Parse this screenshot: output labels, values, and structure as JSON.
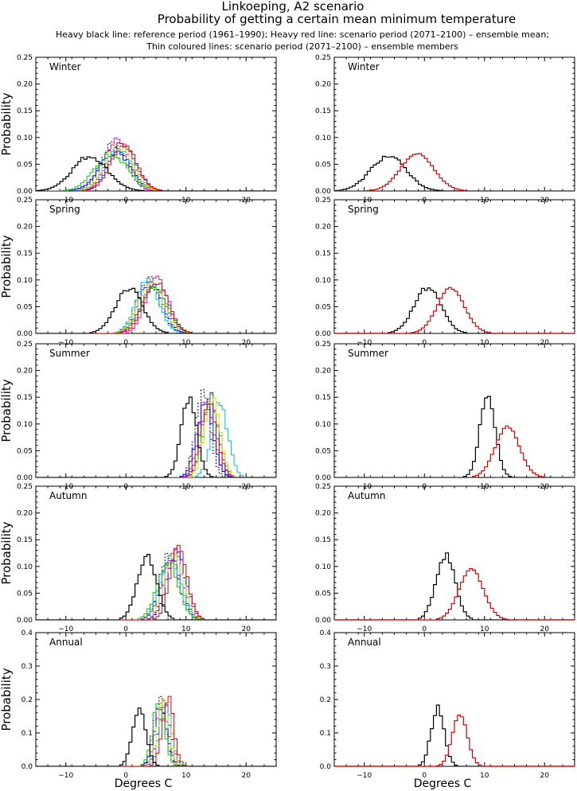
{
  "header": {
    "title": "Linkoeping, A2 scenario",
    "subtitle": "Probability of getting a certain mean minimum temperature",
    "legend_line1": "Heavy black line: reference period (1961–1990); Heavy red line: scenario period (2071–2100) – ensemble mean;",
    "legend_line2": "Thin coloured lines: scenario period (2071–2100) – ensemble members"
  },
  "axes": {
    "ylabel": "Probability",
    "xlabel": "Degrees C"
  },
  "colors": {
    "reference": "#000000",
    "scenario_mean": "#dd0000",
    "members": [
      "#000000",
      "#ff00ff",
      "#7700cc",
      "#0000ff",
      "#00bbdd",
      "#00cc00",
      "#dddd00",
      "#dd0000"
    ]
  },
  "chart_data": [
    {
      "id": "winter-members",
      "type": "line",
      "label": "Winter",
      "variant": "members",
      "xlim": [
        -15,
        25
      ],
      "ylim": [
        0,
        0.25
      ],
      "xticks": [
        -10,
        0,
        10,
        20
      ],
      "yticks": [
        0.0,
        0.05,
        0.1,
        0.15,
        0.2,
        0.25
      ],
      "xtick_labels": [
        "−10",
        "0",
        "10",
        "20"
      ],
      "ytick_labels": [
        "0.00",
        "0.05",
        "0.10",
        "0.15",
        "0.20",
        "0.25"
      ],
      "reference": {
        "mean": -6.0,
        "peak": 0.065
      },
      "scenario_mean": {
        "mean": -1.2,
        "peak": 0.07
      },
      "members": [
        {
          "mean": -2.0,
          "peak": 0.09
        },
        {
          "mean": -1.4,
          "peak": 0.1
        },
        {
          "mean": -0.6,
          "peak": 0.085
        },
        {
          "mean": -1.8,
          "peak": 0.075
        },
        {
          "mean": -1.0,
          "peak": 0.08
        },
        {
          "mean": -2.4,
          "peak": 0.07
        },
        {
          "mean": -1.2,
          "peak": 0.085
        },
        {
          "mean": -0.4,
          "peak": 0.09
        }
      ]
    },
    {
      "id": "winter-mean",
      "type": "line",
      "label": "Winter",
      "variant": "mean",
      "xlim": [
        -15,
        25
      ],
      "ylim": [
        0,
        0.25
      ],
      "xticks": [
        -10,
        0,
        10,
        20
      ],
      "yticks": [
        0.0,
        0.05,
        0.1,
        0.15,
        0.2,
        0.25
      ],
      "xtick_labels": [
        "−10",
        "0",
        "10",
        "20"
      ],
      "ytick_labels": [
        "0.00",
        "0.05",
        "0.10",
        "0.15",
        "0.20",
        "0.25"
      ],
      "reference": {
        "mean": -6.0,
        "peak": 0.065
      },
      "scenario_mean": {
        "mean": -1.2,
        "peak": 0.07
      }
    },
    {
      "id": "spring-members",
      "type": "line",
      "label": "Spring",
      "variant": "members",
      "xlim": [
        -15,
        25
      ],
      "ylim": [
        0,
        0.25
      ],
      "xticks": [
        -10,
        0,
        10,
        20
      ],
      "yticks": [
        0.0,
        0.05,
        0.1,
        0.15,
        0.2,
        0.25
      ],
      "xtick_labels": [
        "−10",
        "0",
        "10",
        "20"
      ],
      "ytick_labels": [
        "0.00",
        "0.05",
        "0.10",
        "0.15",
        "0.20",
        "0.25"
      ],
      "reference": {
        "mean": 0.5,
        "peak": 0.085
      },
      "scenario_mean": {
        "mean": 4.4,
        "peak": 0.085
      },
      "members": [
        {
          "mean": 3.8,
          "peak": 0.1
        },
        {
          "mean": 5.2,
          "peak": 0.105
        },
        {
          "mean": 4.6,
          "peak": 0.09
        },
        {
          "mean": 4.0,
          "peak": 0.095
        },
        {
          "mean": 3.6,
          "peak": 0.1
        },
        {
          "mean": 4.8,
          "peak": 0.09
        },
        {
          "mean": 4.2,
          "peak": 0.09
        },
        {
          "mean": 5.0,
          "peak": 0.095
        }
      ]
    },
    {
      "id": "spring-mean",
      "type": "line",
      "label": "Spring",
      "variant": "mean",
      "xlim": [
        -15,
        25
      ],
      "ylim": [
        0,
        0.25
      ],
      "xticks": [
        -10,
        0,
        10,
        20
      ],
      "yticks": [
        0.0,
        0.05,
        0.1,
        0.15,
        0.2,
        0.25
      ],
      "xtick_labels": [
        "−10",
        "0",
        "10",
        "20"
      ],
      "ytick_labels": [
        "0.00",
        "0.05",
        "0.10",
        "0.15",
        "0.20",
        "0.25"
      ],
      "reference": {
        "mean": 0.5,
        "peak": 0.085
      },
      "scenario_mean": {
        "mean": 4.4,
        "peak": 0.085
      }
    },
    {
      "id": "summer-members",
      "type": "line",
      "label": "Summer",
      "variant": "members",
      "xlim": [
        -15,
        25
      ],
      "ylim": [
        0,
        0.25
      ],
      "xticks": [
        -10,
        0,
        10,
        20
      ],
      "yticks": [
        0.0,
        0.05,
        0.1,
        0.15,
        0.2,
        0.25
      ],
      "xtick_labels": [
        "−10",
        "0",
        "10",
        "20"
      ],
      "ytick_labels": [
        "0.00",
        "0.05",
        "0.10",
        "0.15",
        "0.20",
        "0.25"
      ],
      "reference": {
        "mean": 10.5,
        "peak": 0.15
      },
      "scenario_mean": {
        "mean": 13.8,
        "peak": 0.095
      },
      "members": [
        {
          "mean": 12.8,
          "peak": 0.16
        },
        {
          "mean": 13.4,
          "peak": 0.155
        },
        {
          "mean": 14.0,
          "peak": 0.15
        },
        {
          "mean": 13.2,
          "peak": 0.14
        },
        {
          "mean": 15.6,
          "peak": 0.14
        },
        {
          "mean": 14.2,
          "peak": 0.145
        },
        {
          "mean": 14.4,
          "peak": 0.15
        },
        {
          "mean": 13.8,
          "peak": 0.145
        }
      ]
    },
    {
      "id": "summer-mean",
      "type": "line",
      "label": "Summer",
      "variant": "mean",
      "xlim": [
        -15,
        25
      ],
      "ylim": [
        0,
        0.25
      ],
      "xticks": [
        -10,
        0,
        10,
        20
      ],
      "yticks": [
        0.0,
        0.05,
        0.1,
        0.15,
        0.2,
        0.25
      ],
      "xtick_labels": [
        "−10",
        "0",
        "10",
        "20"
      ],
      "ytick_labels": [
        "0.00",
        "0.05",
        "0.10",
        "0.15",
        "0.20",
        "0.25"
      ],
      "reference": {
        "mean": 10.5,
        "peak": 0.15
      },
      "scenario_mean": {
        "mean": 13.8,
        "peak": 0.095
      }
    },
    {
      "id": "autumn-members",
      "type": "line",
      "label": "Autumn",
      "variant": "members",
      "xlim": [
        -15,
        25
      ],
      "ylim": [
        0,
        0.25
      ],
      "xticks": [
        -10,
        0,
        10,
        20
      ],
      "yticks": [
        0.0,
        0.05,
        0.1,
        0.15,
        0.2,
        0.25
      ],
      "xtick_labels": [
        "−10",
        "0",
        "10",
        "20"
      ],
      "ytick_labels": [
        "0.00",
        "0.05",
        "0.10",
        "0.15",
        "0.20",
        "0.25"
      ],
      "reference": {
        "mean": 3.5,
        "peak": 0.12
      },
      "scenario_mean": {
        "mean": 7.8,
        "peak": 0.095
      },
      "members": [
        {
          "mean": 7.2,
          "peak": 0.12
        },
        {
          "mean": 8.0,
          "peak": 0.125
        },
        {
          "mean": 7.6,
          "peak": 0.115
        },
        {
          "mean": 8.4,
          "peak": 0.12
        },
        {
          "mean": 7.4,
          "peak": 0.115
        },
        {
          "mean": 7.0,
          "peak": 0.11
        },
        {
          "mean": 8.0,
          "peak": 0.12
        },
        {
          "mean": 8.8,
          "peak": 0.135
        }
      ]
    },
    {
      "id": "autumn-mean",
      "type": "line",
      "label": "Autumn",
      "variant": "mean",
      "xlim": [
        -15,
        25
      ],
      "ylim": [
        0,
        0.25
      ],
      "xticks": [
        -10,
        0,
        10,
        20
      ],
      "yticks": [
        0.0,
        0.05,
        0.1,
        0.15,
        0.2,
        0.25
      ],
      "xtick_labels": [
        "−10",
        "0",
        "10",
        "20"
      ],
      "ytick_labels": [
        "0.00",
        "0.05",
        "0.10",
        "0.15",
        "0.20",
        "0.25"
      ],
      "reference": {
        "mean": 3.5,
        "peak": 0.12
      },
      "scenario_mean": {
        "mean": 7.8,
        "peak": 0.095
      }
    },
    {
      "id": "annual-members",
      "type": "line",
      "label": "Annual",
      "variant": "members",
      "xlim": [
        -15,
        25
      ],
      "ylim": [
        0,
        0.4
      ],
      "xticks": [
        -10,
        0,
        10,
        20
      ],
      "yticks": [
        0.0,
        0.1,
        0.2,
        0.3,
        0.4
      ],
      "xtick_labels": [
        "−10",
        "0",
        "10",
        "20"
      ],
      "ytick_labels": [
        "0.0",
        "0.1",
        "0.2",
        "0.3",
        "0.4"
      ],
      "reference": {
        "mean": 2.2,
        "peak": 0.175
      },
      "scenario_mean": {
        "mean": 5.9,
        "peak": 0.155
      },
      "members": [
        {
          "mean": 5.6,
          "peak": 0.2
        },
        {
          "mean": 6.0,
          "peak": 0.195
        },
        {
          "mean": 6.4,
          "peak": 0.19
        },
        {
          "mean": 5.8,
          "peak": 0.18
        },
        {
          "mean": 6.6,
          "peak": 0.2
        },
        {
          "mean": 5.4,
          "peak": 0.19
        },
        {
          "mean": 6.2,
          "peak": 0.2
        },
        {
          "mean": 7.0,
          "peak": 0.2
        }
      ]
    },
    {
      "id": "annual-mean",
      "type": "line",
      "label": "Annual",
      "variant": "mean",
      "xlim": [
        -15,
        25
      ],
      "ylim": [
        0,
        0.4
      ],
      "xticks": [
        -10,
        0,
        10,
        20
      ],
      "yticks": [
        0.0,
        0.1,
        0.2,
        0.3,
        0.4
      ],
      "xtick_labels": [
        "−10",
        "0",
        "10",
        "20"
      ],
      "ytick_labels": [
        "0.0",
        "0.1",
        "0.2",
        "0.3",
        "0.4"
      ],
      "reference": {
        "mean": 2.2,
        "peak": 0.175
      },
      "scenario_mean": {
        "mean": 5.9,
        "peak": 0.155
      }
    }
  ]
}
